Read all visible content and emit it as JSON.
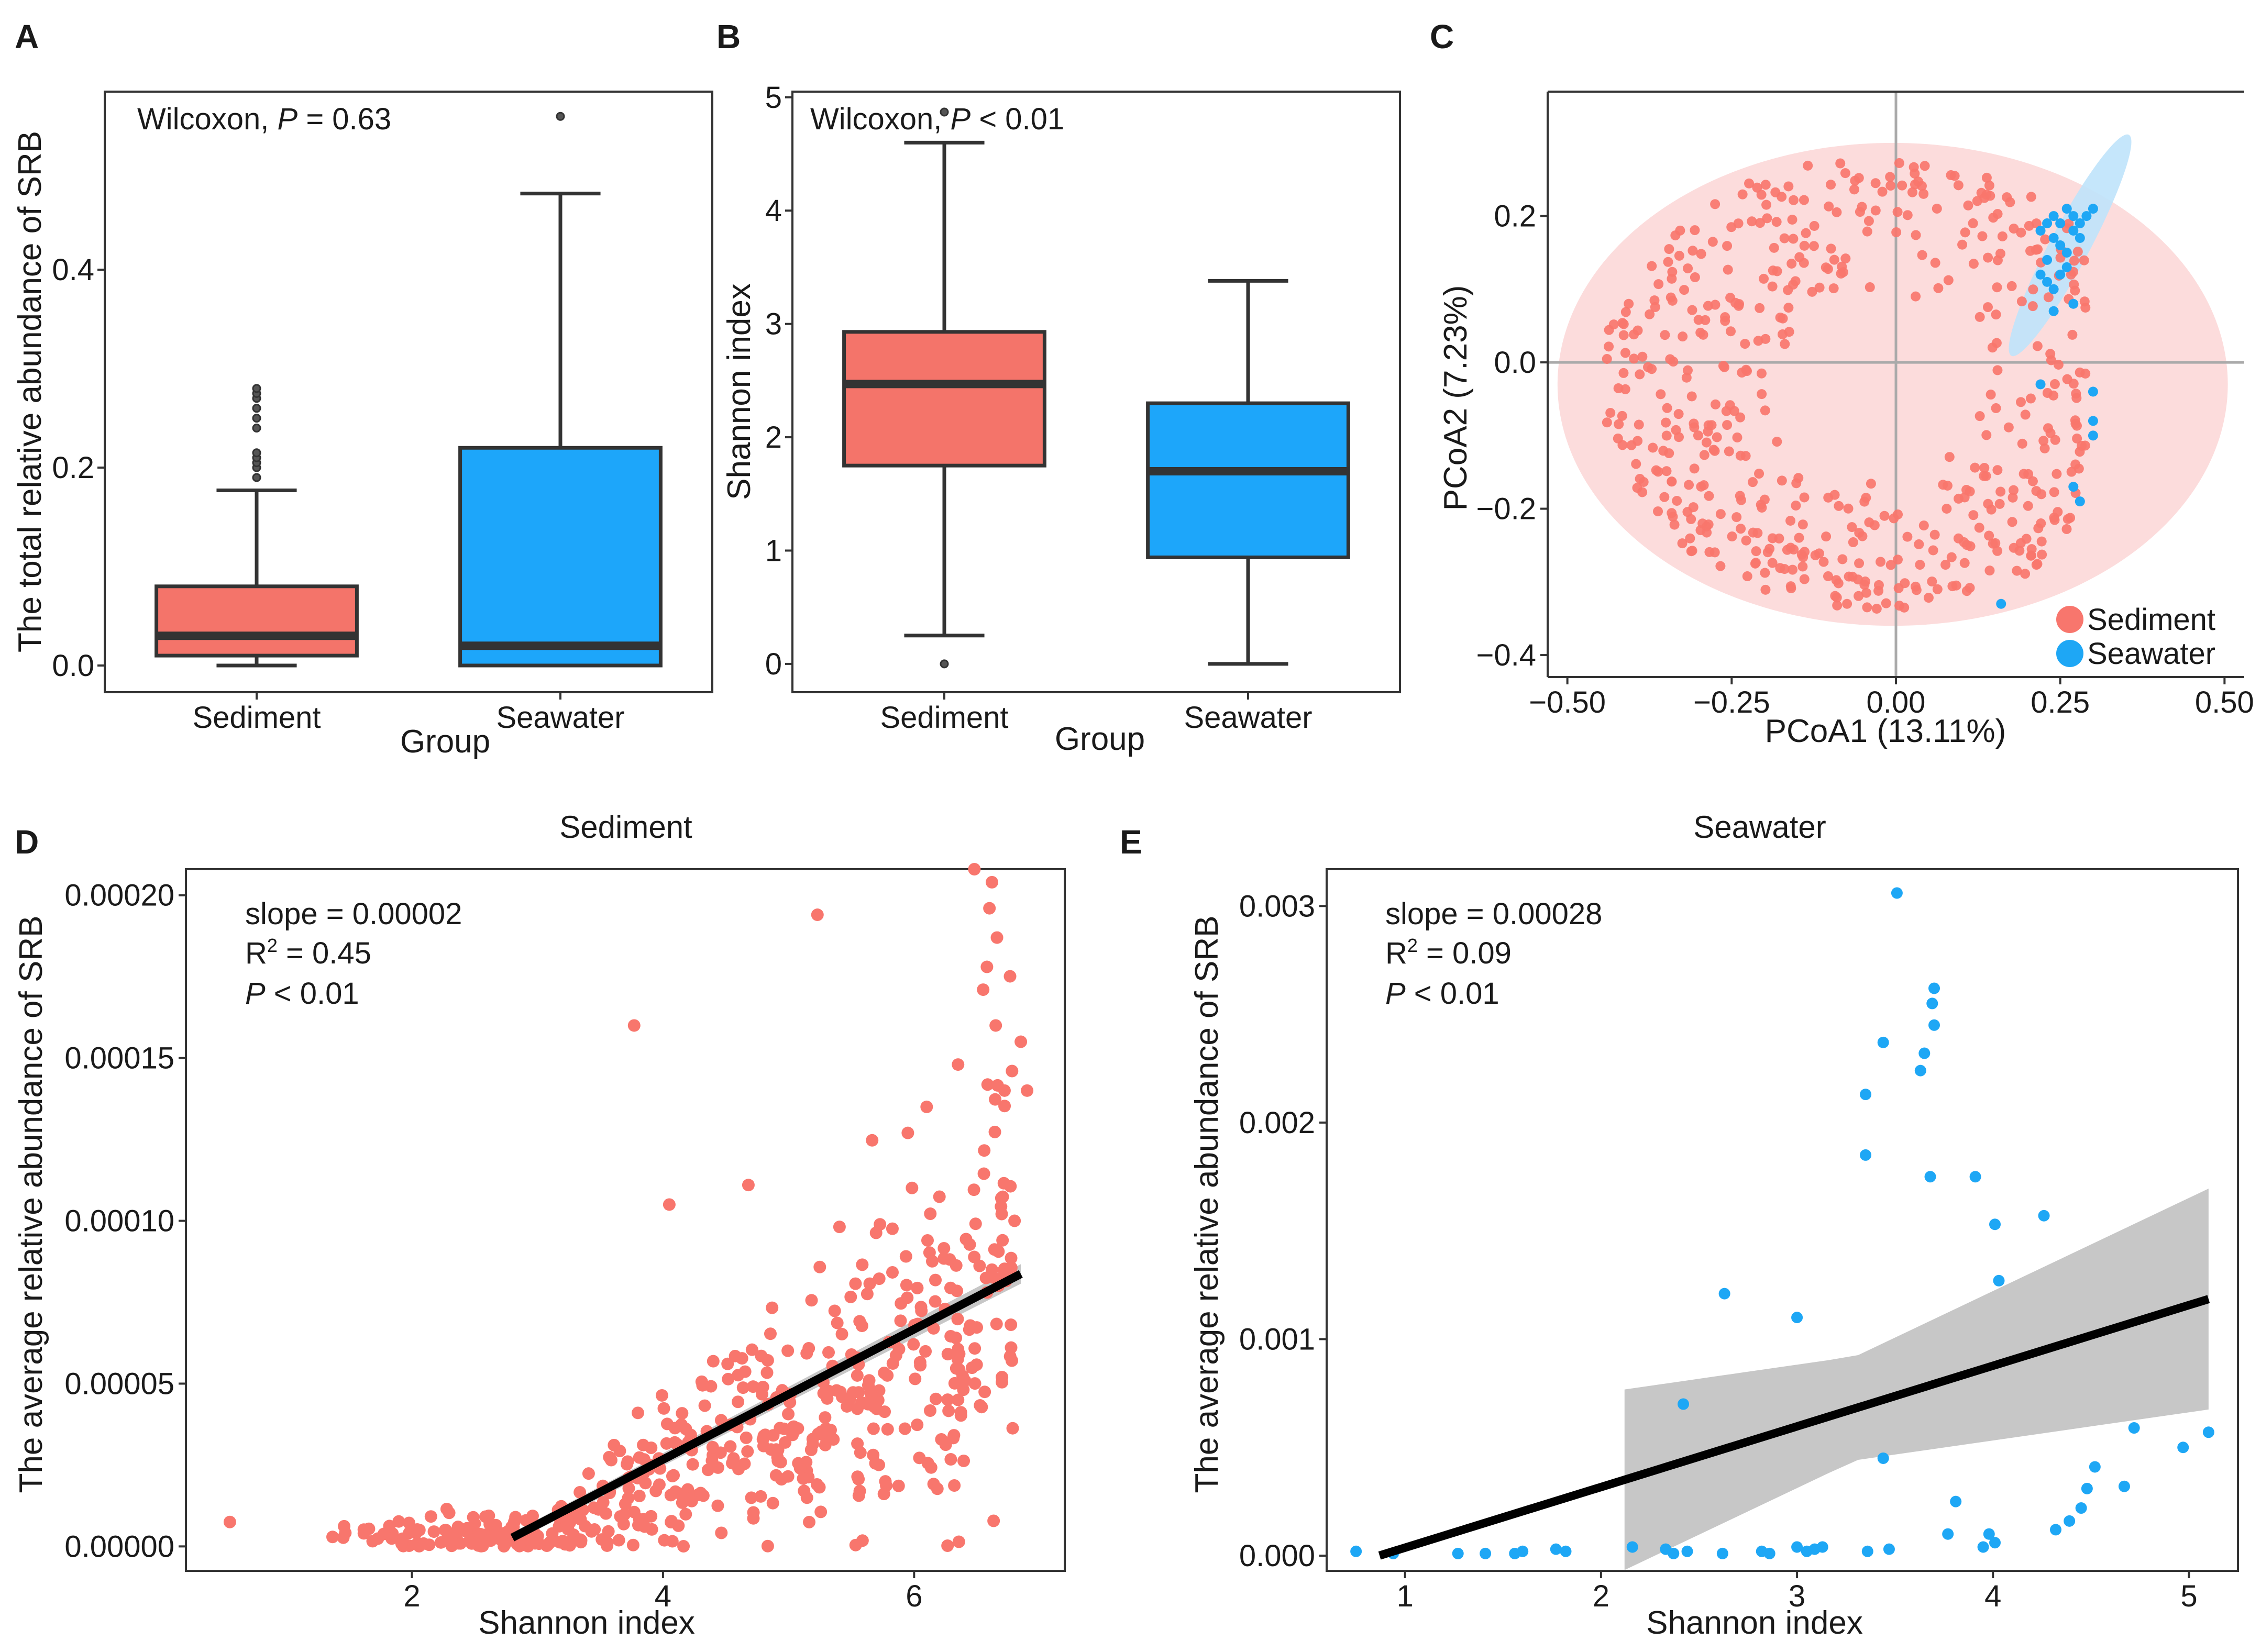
{
  "colors": {
    "sediment": "#F8766D",
    "seawater": "#1EA7F5",
    "box_sediment": "#F4746A",
    "box_seawater": "#1DA6FA",
    "line": "#000000",
    "ci": "#BDBDBD",
    "ellipse_sediment": "#FCDCDC",
    "ellipse_seawater": "#BFE3FB"
  },
  "chart_data": [
    {
      "id": "A",
      "panel_label": "A",
      "type": "box",
      "title": "",
      "xlabel": "Group",
      "ylabel": "The total relative abundance of SRB",
      "categories": [
        "Sediment",
        "Seawater"
      ],
      "boxes": [
        {
          "name": "Sediment",
          "min": 0.0,
          "q1": 0.01,
          "median": 0.03,
          "q3": 0.08,
          "max": 0.177,
          "outliers": [
            0.19,
            0.2,
            0.205,
            0.21,
            0.215,
            0.24,
            0.25,
            0.26,
            0.27,
            0.275,
            0.28
          ],
          "color": "#F4746A"
        },
        {
          "name": "Seawater",
          "min": 0.0,
          "q1": 0.0,
          "median": 0.02,
          "q3": 0.22,
          "max": 0.477,
          "outliers": [
            0.555
          ],
          "color": "#1DA6FA"
        }
      ],
      "yticks": [
        "0.0",
        "0.2",
        "0.4"
      ],
      "ylim": [
        -0.027,
        0.58
      ],
      "annotation": {
        "test": "Wilcoxon, ",
        "p_symbol": "P",
        "p_text": " = 0.63"
      }
    },
    {
      "id": "B",
      "panel_label": "B",
      "type": "box",
      "title": "",
      "xlabel": "Group",
      "ylabel": "Shannon index",
      "categories": [
        "Sediment",
        "Seawater"
      ],
      "boxes": [
        {
          "name": "Sediment",
          "min": 0.25,
          "q1": 1.75,
          "median": 2.47,
          "q3": 2.93,
          "max": 4.6,
          "outliers": [
            0.0,
            4.87
          ],
          "color": "#F4746A"
        },
        {
          "name": "Seawater",
          "min": 0.0,
          "q1": 0.94,
          "median": 1.7,
          "q3": 2.3,
          "max": 3.38,
          "outliers": [],
          "color": "#1DA6FA"
        }
      ],
      "yticks": [
        "0",
        "1",
        "2",
        "3",
        "4",
        "5"
      ],
      "ylim": [
        -0.25,
        5.05
      ],
      "annotation": {
        "test": "Wilcoxon, ",
        "p_symbol": "P",
        "p_text": " < 0.01"
      }
    },
    {
      "id": "C",
      "panel_label": "C",
      "type": "scatter",
      "title": "",
      "xlabel": "PCoA1 (13.11%)",
      "ylabel": "PCoA2 (7.23%)",
      "xlim": [
        -0.53,
        0.53
      ],
      "ylim": [
        -0.43,
        0.37
      ],
      "xticks": [
        "−0.50",
        "−0.25",
        "0.00",
        "0.25",
        "0.50"
      ],
      "yticks": [
        "−0.4",
        "−0.2",
        "0.0",
        "0.2"
      ],
      "legend": [
        "Sediment",
        "Seawater"
      ],
      "legend_position": "bottom-right",
      "ellipses": [
        {
          "group": "Sediment",
          "cx": -0.005,
          "cy": -0.03,
          "rx": 0.51,
          "ry": 0.33,
          "angle": 0
        },
        {
          "group": "Seawater",
          "cx": 0.265,
          "cy": 0.16,
          "rx": 0.09,
          "ry": 0.02,
          "angle": 62
        }
      ],
      "series": [
        {
          "name": "Seawater",
          "points": [
            [
              0.22,
              0.18
            ],
            [
              0.23,
              0.19
            ],
            [
              0.24,
              0.2
            ],
            [
              0.25,
              0.19
            ],
            [
              0.26,
              0.21
            ],
            [
              0.27,
              0.2
            ],
            [
              0.28,
              0.19
            ],
            [
              0.24,
              0.17
            ],
            [
              0.25,
              0.16
            ],
            [
              0.26,
              0.15
            ],
            [
              0.23,
              0.14
            ],
            [
              0.22,
              0.12
            ],
            [
              0.24,
              0.1
            ],
            [
              0.23,
              0.11
            ],
            [
              0.25,
              0.12
            ],
            [
              0.27,
              0.18
            ],
            [
              0.29,
              0.2
            ],
            [
              0.28,
              0.17
            ],
            [
              0.3,
              0.21
            ],
            [
              0.26,
              0.13
            ],
            [
              0.24,
              0.07
            ],
            [
              0.27,
              0.08
            ],
            [
              0.22,
              -0.03
            ],
            [
              0.3,
              -0.04
            ],
            [
              0.3,
              -0.08
            ],
            [
              0.3,
              -0.1
            ],
            [
              0.27,
              -0.17
            ],
            [
              0.28,
              -0.19
            ],
            [
              0.16,
              -0.33
            ]
          ]
        }
      ]
    },
    {
      "id": "D",
      "panel_label": "D",
      "type": "scatter",
      "title": "Sediment",
      "xlabel": "Shannon index",
      "ylabel": "The average relative abundance of SRB",
      "xlim": [
        0.2,
        7.2
      ],
      "ylim": [
        -7.5e-06,
        0.000208
      ],
      "xticks": [
        2,
        4,
        6
      ],
      "yticks": [
        "0.00000",
        "0.00005",
        "0.00010",
        "0.00015",
        "0.00020"
      ],
      "fit": {
        "x0": 2.8,
        "x1": 6.85,
        "slope": 2e-05,
        "intercept": -5.33e-05,
        "ci_half_width": 3e-06
      },
      "annotation": {
        "slope": "slope = 0.00002",
        "r2_prefix": "R",
        "r2_sup": "2",
        "r2_suffix": " = 0.45",
        "p_symbol": "P",
        "p_text": " < 0.01"
      },
      "series": [
        {
          "name": "Sediment",
          "points": [
            [
              0.55,
              7.5e-06
            ],
            [
              3.77,
              0.00016
            ],
            [
              4.05,
              0.000105
            ],
            [
              5.23,
              0.000194
            ],
            [
              4.68,
              0.000111
            ],
            [
              6.48,
              0.000208
            ],
            [
              6.62,
              0.000204
            ],
            [
              6.6,
              0.000196
            ],
            [
              6.66,
              0.000187
            ],
            [
              6.58,
              0.000178
            ],
            [
              6.55,
              0.000171
            ],
            [
              6.65,
              0.00016
            ],
            [
              6.78,
              0.000146
            ],
            [
              6.72,
              0.00014
            ],
            [
              6.35,
              0.000148
            ],
            [
              6.9,
              0.00014
            ],
            [
              6.85,
              0.000155
            ],
            [
              5.95,
              0.000127
            ],
            [
              6.1,
              0.000135
            ],
            [
              6.8,
              0.0001
            ],
            [
              6.7,
              5.2e-05
            ],
            [
              6.35,
              4.5e-05
            ],
            [
              6.62,
              8.5e-05
            ],
            [
              6.58,
              7.8e-05
            ]
          ]
        }
      ]
    },
    {
      "id": "E",
      "panel_label": "E",
      "type": "scatter",
      "title": "Seawater",
      "xlabel": "Shannon index",
      "ylabel": "The average relative abundance of SRB",
      "xlim": [
        0.6,
        5.25
      ],
      "ylim": [
        -7e-05,
        0.00317
      ],
      "xticks": [
        1,
        2,
        3,
        4,
        5
      ],
      "yticks": [
        "0.000",
        "0.001",
        "0.002",
        "0.003"
      ],
      "fit": {
        "x0": 0.87,
        "x1": 5.1,
        "slope": 0.00028,
        "intercept": -0.000243,
        "ci_x0": 2.12
      },
      "annotation": {
        "slope": "slope = 0.00028",
        "r2_prefix": "R",
        "r2_sup": "2",
        "r2_suffix": " = 0.09",
        "p_symbol": "P",
        "p_text": " < 0.01"
      },
      "series": [
        {
          "name": "Seawater",
          "points": [
            [
              0.75,
              2e-05
            ],
            [
              0.94,
              1e-05
            ],
            [
              1.27,
              1e-05
            ],
            [
              1.41,
              1e-05
            ],
            [
              1.56,
              1e-05
            ],
            [
              1.6,
              2e-05
            ],
            [
              1.77,
              3e-05
            ],
            [
              1.82,
              2e-05
            ],
            [
              2.16,
              4e-05
            ],
            [
              2.33,
              3e-05
            ],
            [
              2.37,
              1e-05
            ],
            [
              2.44,
              2e-05
            ],
            [
              2.62,
              1e-05
            ],
            [
              2.82,
              2e-05
            ],
            [
              2.86,
              1e-05
            ],
            [
              3.0,
              4e-05
            ],
            [
              3.05,
              2e-05
            ],
            [
              3.09,
              3e-05
            ],
            [
              3.13,
              4e-05
            ],
            [
              3.36,
              2e-05
            ],
            [
              3.47,
              3e-05
            ],
            [
              2.42,
              0.0007
            ],
            [
              2.63,
              0.00121
            ],
            [
              3.0,
              0.0011
            ],
            [
              3.44,
              0.00045
            ],
            [
              3.35,
              0.00185
            ],
            [
              3.35,
              0.00213
            ],
            [
              3.44,
              0.00237
            ],
            [
              3.51,
              0.00306
            ],
            [
              3.63,
              0.00224
            ],
            [
              3.65,
              0.00232
            ],
            [
              3.69,
              0.00255
            ],
            [
              3.7,
              0.00262
            ],
            [
              3.7,
              0.00245
            ],
            [
              3.68,
              0.00175
            ],
            [
              3.77,
              0.0001
            ],
            [
              3.81,
              0.00025
            ],
            [
              3.91,
              0.00175
            ],
            [
              3.95,
              4e-05
            ],
            [
              3.98,
              0.0001
            ],
            [
              4.01,
              6e-05
            ],
            [
              4.01,
              0.00153
            ],
            [
              4.03,
              0.00127
            ],
            [
              4.26,
              0.00157
            ],
            [
              4.32,
              0.00012
            ],
            [
              4.39,
              0.00016
            ],
            [
              4.45,
              0.00022
            ],
            [
              4.48,
              0.00031
            ],
            [
              4.52,
              0.00041
            ],
            [
              4.67,
              0.00032
            ],
            [
              4.72,
              0.00059
            ],
            [
              4.97,
              0.0005
            ],
            [
              5.1,
              0.00057
            ]
          ]
        }
      ]
    }
  ]
}
